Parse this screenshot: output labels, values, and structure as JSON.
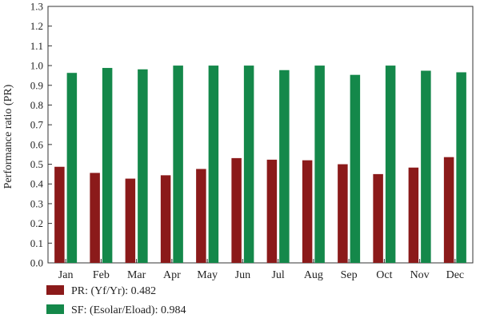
{
  "chart_data": {
    "type": "bar",
    "ylabel": "Performance ratio (PR)",
    "xlabel": "",
    "ylim": [
      0,
      1.3
    ],
    "yticks": [
      "0.0",
      "0.1",
      "0.2",
      "0.3",
      "0.4",
      "0.5",
      "0.6",
      "0.7",
      "0.8",
      "0.9",
      "1.0",
      "1.1",
      "1.2",
      "1.3"
    ],
    "categories": [
      "Jan",
      "Feb",
      "Mar",
      "Apr",
      "May",
      "Jun",
      "Jul",
      "Aug",
      "Sep",
      "Oct",
      "Nov",
      "Dec"
    ],
    "series": [
      {
        "name": "PR: (Yf/Yr): 0.482",
        "color": "#8b1a1a",
        "values": [
          0.487,
          0.456,
          0.427,
          0.444,
          0.476,
          0.531,
          0.523,
          0.52,
          0.5,
          0.45,
          0.483,
          0.536
        ]
      },
      {
        "name": "SF: (Esolar/Eload): 0.984",
        "color": "#14884a",
        "values": [
          0.963,
          0.988,
          0.981,
          1.0,
          1.0,
          1.0,
          0.977,
          1.0,
          0.953,
          1.0,
          0.974,
          0.966
        ]
      }
    ],
    "grid": false,
    "legend_position": "bottom-left"
  }
}
